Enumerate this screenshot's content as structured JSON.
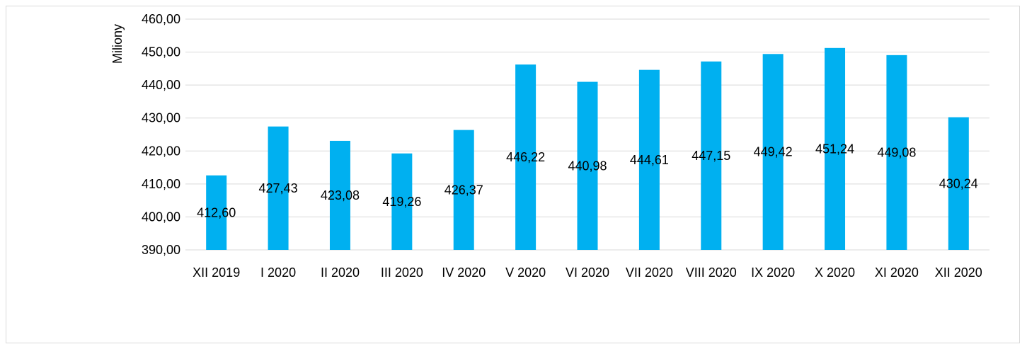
{
  "chart_data": {
    "type": "bar",
    "categories": [
      "XII 2019",
      "I 2020",
      "II 2020",
      "III 2020",
      "IV 2020",
      "V 2020",
      "VI 2020",
      "VII 2020",
      "VIII 2020",
      "IX 2020",
      "X 2020",
      "XI 2020",
      "XII 2020"
    ],
    "values": [
      412.6,
      427.43,
      423.08,
      419.26,
      426.37,
      446.22,
      440.98,
      444.61,
      447.15,
      449.42,
      451.24,
      449.08,
      430.24
    ],
    "data_labels": [
      "412,60",
      "427,43",
      "423,08",
      "419,26",
      "426,37",
      "446,22",
      "440,98",
      "444,61",
      "447,15",
      "449,42",
      "451,24",
      "449,08",
      "430,24"
    ],
    "ylabel": "Miliony",
    "ylim": [
      390,
      460
    ],
    "yticks": [
      "390,00",
      "400,00",
      "410,00",
      "420,00",
      "430,00",
      "440,00",
      "450,00",
      "460,00"
    ],
    "grid": true,
    "legend": "none",
    "colors": {
      "bar": "#00b0f0",
      "grid": "#d9d9d9",
      "text": "#000000"
    }
  }
}
